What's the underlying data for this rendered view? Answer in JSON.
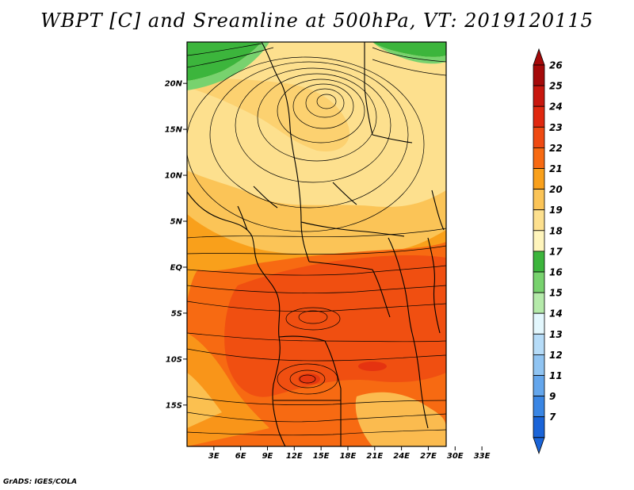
{
  "title": "WBPT [C] and Sreamline at 500hPa, VT: 2019120115",
  "credit": "GrADS: IGES/COLA",
  "map": {
    "lat_range": [
      -19.5,
      24.5
    ],
    "lon_range": [
      0,
      29
    ],
    "lat_ticks": [
      {
        "value": 20,
        "label": "20N"
      },
      {
        "value": 15,
        "label": "15N"
      },
      {
        "value": 10,
        "label": "10N"
      },
      {
        "value": 5,
        "label": "5N"
      },
      {
        "value": 0,
        "label": "EQ"
      },
      {
        "value": -5,
        "label": "5S"
      },
      {
        "value": -10,
        "label": "10S"
      },
      {
        "value": -15,
        "label": "15S"
      }
    ],
    "lon_ticks": [
      {
        "value": 3,
        "label": "3E"
      },
      {
        "value": 6,
        "label": "6E"
      },
      {
        "value": 9,
        "label": "9E"
      },
      {
        "value": 12,
        "label": "12E"
      },
      {
        "value": 15,
        "label": "15E"
      },
      {
        "value": 18,
        "label": "18E"
      },
      {
        "value": 21,
        "label": "21E"
      },
      {
        "value": 24,
        "label": "24E"
      },
      {
        "value": 27,
        "label": "27E"
      },
      {
        "value": 30,
        "label": "30E"
      },
      {
        "value": 33,
        "label": "33E"
      }
    ]
  },
  "colorbar": {
    "levels": [
      {
        "label": "26",
        "color": "#a50a0a"
      },
      {
        "label": "25",
        "color": "#c8170e"
      },
      {
        "label": "24",
        "color": "#e0280f"
      },
      {
        "label": "23",
        "color": "#ef4a12"
      },
      {
        "label": "22",
        "color": "#f76a12"
      },
      {
        "label": "21",
        "color": "#f9a01b"
      },
      {
        "label": "20",
        "color": "#fbc457"
      },
      {
        "label": "19",
        "color": "#fde08e"
      },
      {
        "label": "18",
        "color": "#fff5bc"
      },
      {
        "label": "17",
        "color": "#3cb53c"
      },
      {
        "label": "16",
        "color": "#78d26e"
      },
      {
        "label": "15",
        "color": "#b5eaaa"
      },
      {
        "label": "14",
        "color": "#e3f7fd"
      },
      {
        "label": "13",
        "color": "#b6dcf8"
      },
      {
        "label": "12",
        "color": "#90c4f2"
      },
      {
        "label": "11",
        "color": "#64a6ec"
      },
      {
        "label": "9",
        "color": "#3a86e4"
      },
      {
        "label": "7",
        "color": "#1a64d8"
      }
    ]
  },
  "colors": {
    "green": "#3cb53c",
    "light_green": "#78d26e",
    "pale_yellow": "#fde08e",
    "light_orange": "#fbc457",
    "orange": "#f9a01b",
    "dark_orange": "#f76a12",
    "red_orange": "#ef4a12"
  }
}
